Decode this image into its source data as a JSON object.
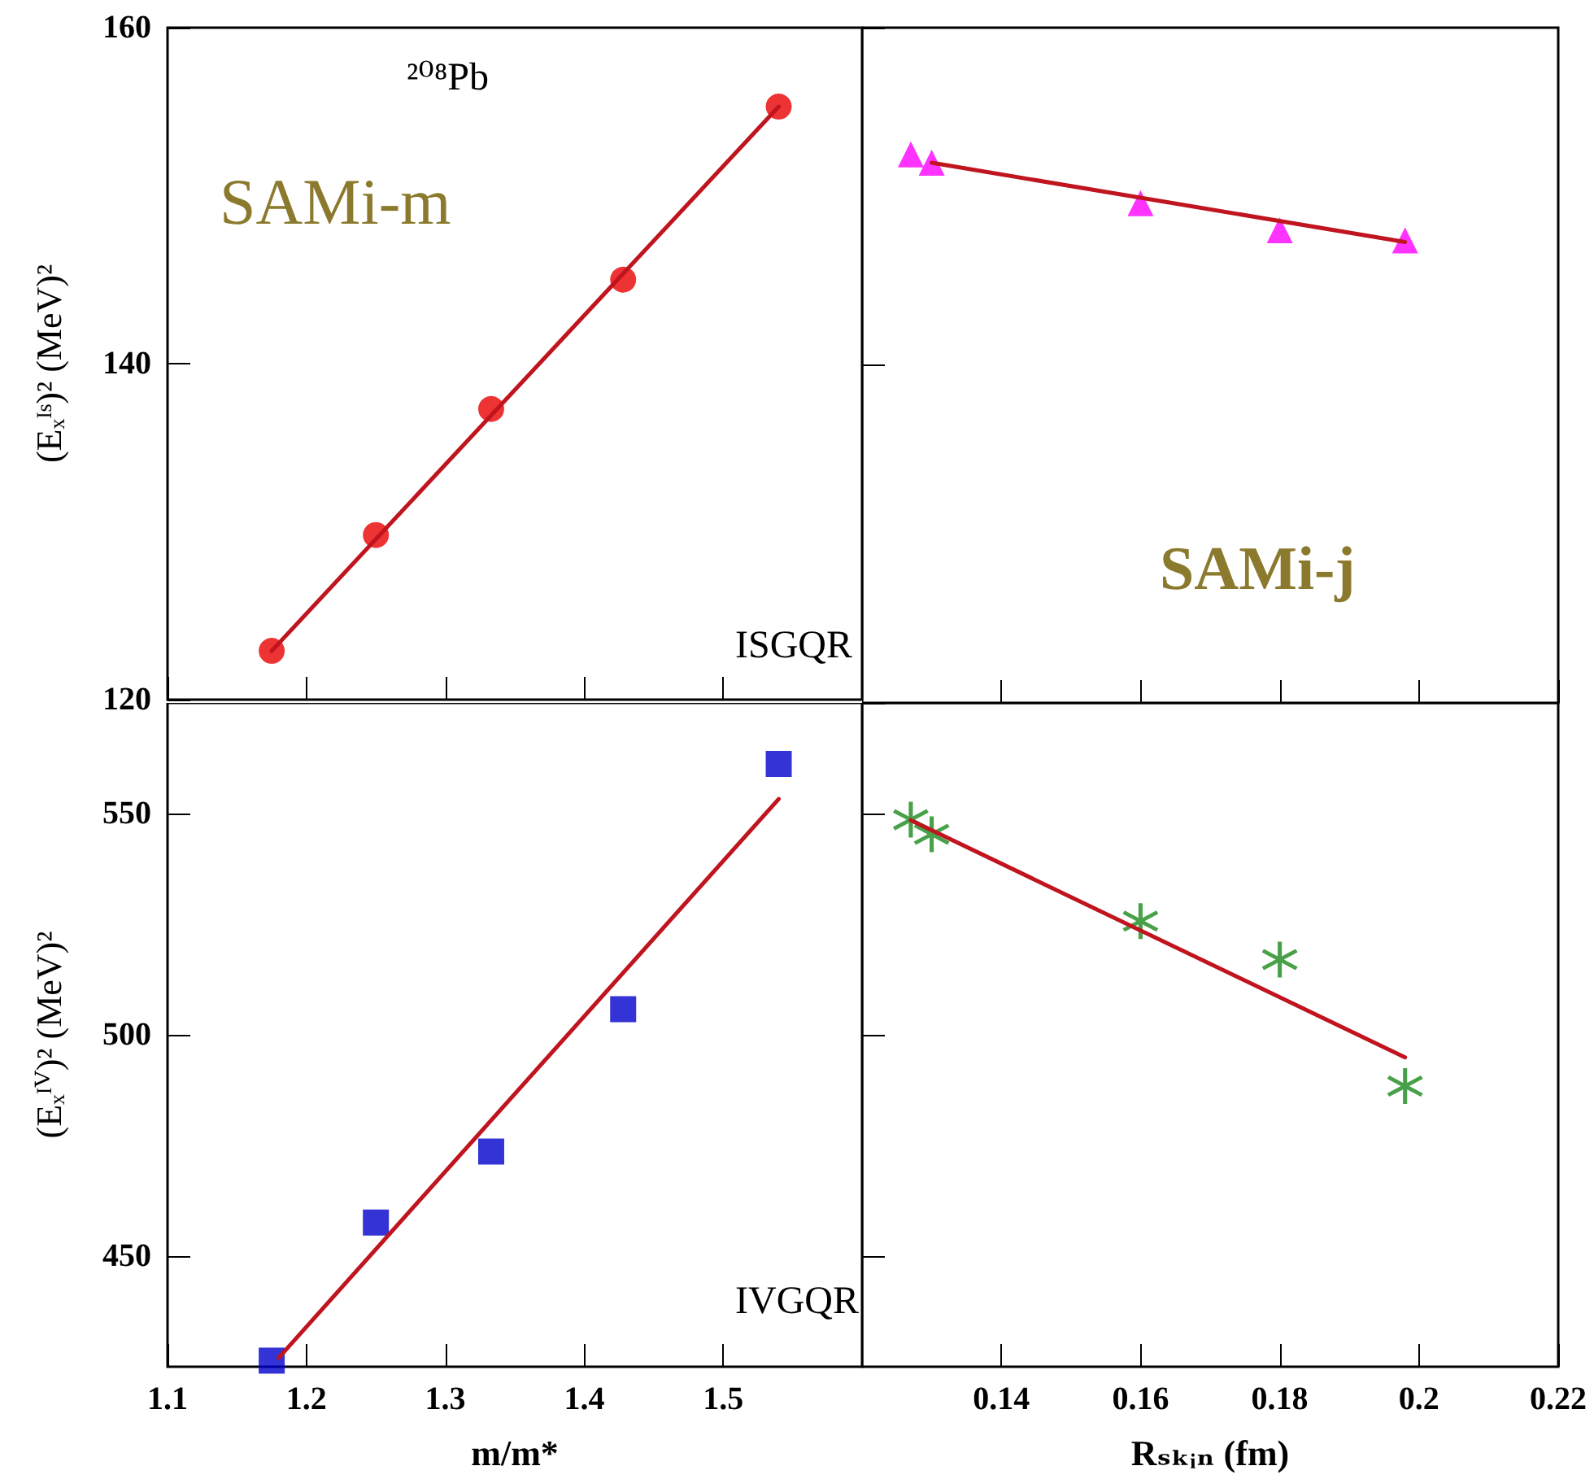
{
  "chart_data": [
    {
      "type": "scatter",
      "ylabel": "(Eₓᴵˢ)² (MeV)²",
      "annotations": [
        "²⁰⁸Pb",
        "SAMi-m",
        "ISGQR"
      ],
      "xlim": [
        1.1,
        1.6
      ],
      "xticks": [
        1.1,
        1.2,
        1.3,
        1.4,
        1.5
      ],
      "ylim": [
        120,
        160
      ],
      "yticks": [
        120,
        140,
        160
      ],
      "tick_labels": "y",
      "marker": "circle",
      "series": [
        {
          "color": "#e80000",
          "x": [
            1.175,
            1.25,
            1.333,
            1.428,
            1.54
          ],
          "values": [
            122.9,
            129.8,
            137.3,
            145.0,
            155.3
          ]
        },
        {
          "type": "line",
          "color": "#c0141e",
          "marker": "none",
          "x": [
            1.175,
            1.54
          ],
          "values": [
            122.9,
            155.3
          ]
        }
      ]
    },
    {
      "type": "scatter",
      "annotations": [
        "SAMi-j"
      ],
      "xlim": [
        0.12,
        0.22
      ],
      "xticks": [
        0.14,
        0.16,
        0.18,
        0.2,
        0.22
      ],
      "ylim": [
        120,
        160
      ],
      "yticks": [
        120,
        140,
        160
      ],
      "tick_labels": false,
      "marker": "triangle",
      "series": [
        {
          "color": "#ff00ff",
          "x": [
            0.127,
            0.13,
            0.16,
            0.18,
            0.198
          ],
          "values": [
            152.5,
            152.0,
            149.6,
            148.0,
            147.4
          ]
        },
        {
          "type": "line",
          "color": "#c0141e",
          "marker": "none",
          "x": [
            0.13,
            0.198
          ],
          "values": [
            152.0,
            147.3
          ]
        }
      ]
    },
    {
      "type": "scatter",
      "xlabel": "m/m*",
      "ylabel": "(Eₓᴵⱽ)² (MeV)²",
      "annotations": [
        "IVGQR"
      ],
      "xlim": [
        1.1,
        1.6
      ],
      "xticks": [
        1.1,
        1.2,
        1.3,
        1.4,
        1.5
      ],
      "ylim": [
        425,
        575
      ],
      "yticks": [
        450,
        500,
        550
      ],
      "marker": "square",
      "series": [
        {
          "color": "#0000cc",
          "x": [
            1.175,
            1.25,
            1.333,
            1.428,
            1.54
          ],
          "values": [
            426.4,
            457.6,
            473.6,
            505.8,
            561.2
          ]
        },
        {
          "type": "line",
          "color": "#c0141e",
          "marker": "none",
          "x": [
            1.18,
            1.54
          ],
          "values": [
            427,
            553.3
          ]
        }
      ]
    },
    {
      "type": "scatter",
      "xlabel": "Rₛₖᵢₙ (fm)",
      "xlim": [
        0.12,
        0.22
      ],
      "xticks": [
        0.14,
        0.16,
        0.18,
        0.2,
        0.22
      ],
      "ylim": [
        425,
        575
      ],
      "yticks": [
        450,
        500,
        550
      ],
      "tick_labels": "x",
      "marker": "star",
      "series": [
        {
          "color": "#1a8a1a",
          "x": [
            0.127,
            0.13,
            0.16,
            0.18,
            0.198
          ],
          "values": [
            548.6,
            545.3,
            525.7,
            517.0,
            488.4
          ]
        },
        {
          "type": "line",
          "color": "#c0141e",
          "marker": "none",
          "x": [
            0.127,
            0.198
          ],
          "values": [
            548.5,
            494.9
          ]
        }
      ]
    }
  ]
}
